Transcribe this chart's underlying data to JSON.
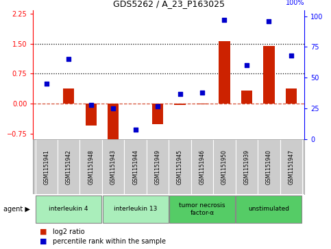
{
  "title": "GDS5262 / A_23_P163025",
  "samples": [
    "GSM1151941",
    "GSM1151942",
    "GSM1151948",
    "GSM1151943",
    "GSM1151944",
    "GSM1151949",
    "GSM1151945",
    "GSM1151946",
    "GSM1151950",
    "GSM1151939",
    "GSM1151940",
    "GSM1151947"
  ],
  "log2_ratio": [
    0.0,
    0.38,
    -0.55,
    -0.9,
    0.0,
    -0.52,
    -0.03,
    -0.02,
    1.57,
    0.32,
    1.44,
    0.38
  ],
  "percentile": [
    45,
    65,
    28,
    25,
    8,
    27,
    37,
    38,
    97,
    60,
    96,
    68
  ],
  "agents": [
    {
      "label": "interleukin 4",
      "start": 0,
      "end": 2,
      "color": "#aaeebb"
    },
    {
      "label": "interleukin 13",
      "start": 3,
      "end": 5,
      "color": "#aaeebb"
    },
    {
      "label": "tumor necrosis\nfactor-α",
      "start": 6,
      "end": 8,
      "color": "#55cc66"
    },
    {
      "label": "unstimulated",
      "start": 9,
      "end": 11,
      "color": "#55cc66"
    }
  ],
  "ylim_left": [
    -0.9,
    2.35
  ],
  "ylim_right": [
    0,
    105
  ],
  "yticks_left": [
    -0.75,
    0,
    0.75,
    1.5,
    2.25
  ],
  "yticks_right": [
    0,
    25,
    50,
    75,
    100
  ],
  "hlines": [
    0.75,
    1.5
  ],
  "bar_color": "#cc2200",
  "dot_color": "#0000cc",
  "background_color": "#ffffff",
  "plot_bg": "#ffffff",
  "label_bg": "#cccccc"
}
